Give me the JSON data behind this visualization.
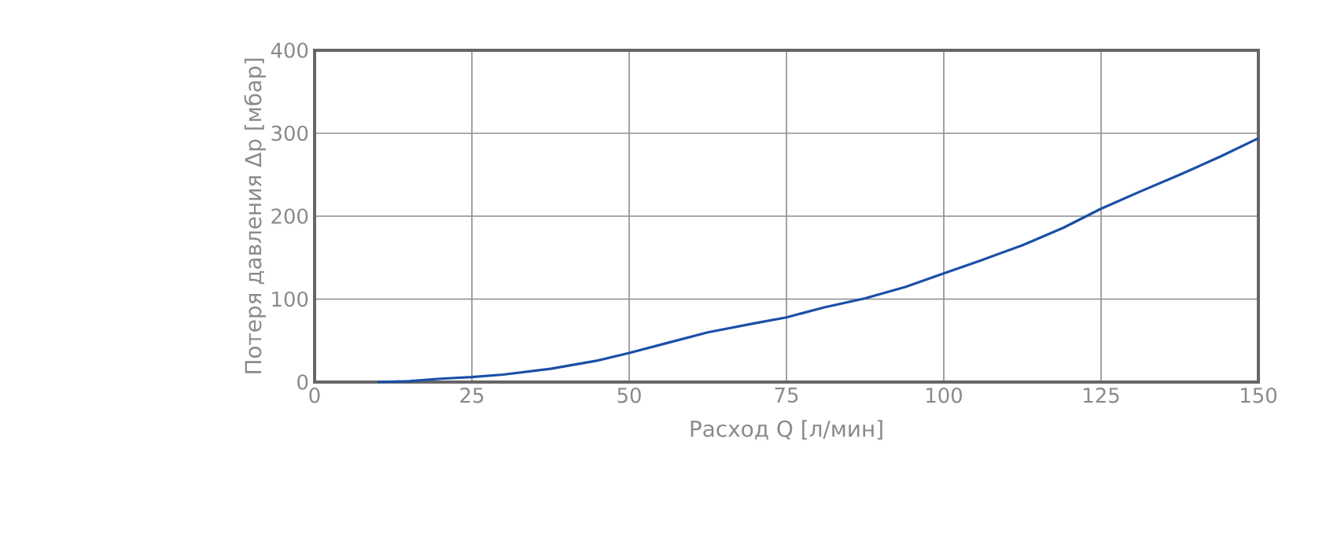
{
  "chart_data": {
    "type": "line",
    "xlabel": "Расход Q [л/мин]",
    "ylabel": "Потеря давления Δp [мбар]",
    "x": [
      10,
      15,
      20,
      25,
      30,
      37.5,
      45,
      50,
      56,
      62.5,
      70,
      75,
      81,
      87.5,
      94,
      100,
      106,
      112.5,
      119,
      125,
      131,
      137.5,
      144,
      150
    ],
    "series": [
      {
        "color": "#1a4fa8",
        "values": [
          0,
          1,
          4,
          6,
          9,
          16,
          26,
          35,
          47,
          60,
          71,
          78,
          90,
          101,
          115,
          131,
          147,
          165,
          186,
          209,
          229,
          250,
          272,
          294
        ]
      }
    ],
    "xlim": [
      0,
      150
    ],
    "ylim": [
      0,
      400
    ],
    "xticks": [
      0,
      25,
      50,
      75,
      100,
      125,
      150
    ],
    "yticks": [
      0,
      100,
      200,
      300,
      400
    ],
    "grid": true,
    "marker": "none",
    "line_style": "solid"
  }
}
